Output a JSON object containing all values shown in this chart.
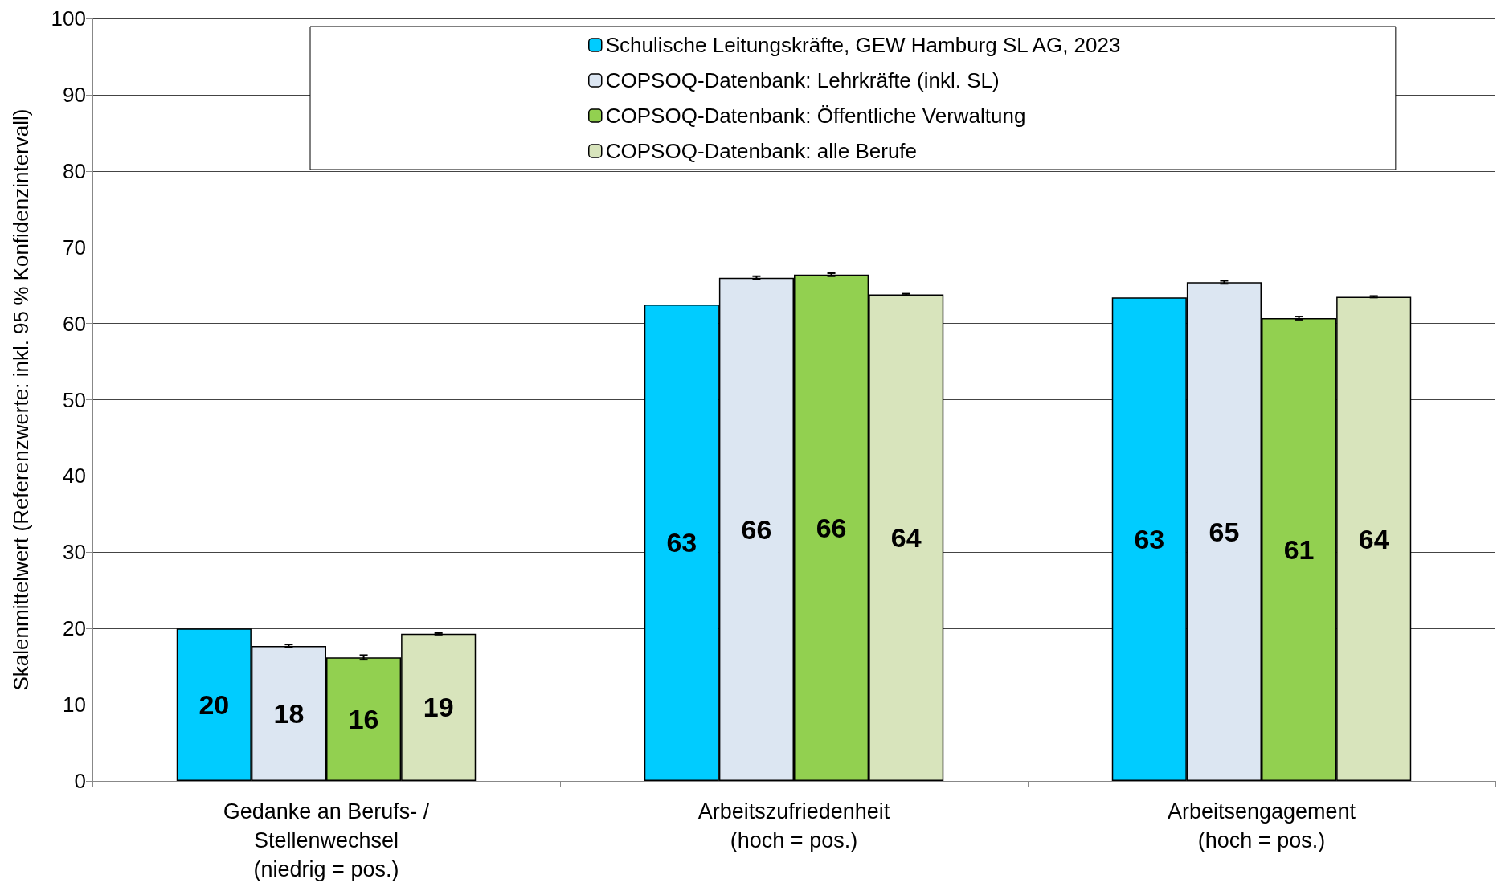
{
  "chart_data": {
    "type": "bar",
    "ylabel": "Skalenmittelwert (Referenzwerte: inkl. 95 % Konfidenzintervall)",
    "categories": [
      "Gedanke an Berufs- /\nStellenwechsel\n(niedrig = pos.)",
      "Arbeitszufriedenheit\n(hoch = pos.)",
      "Arbeitsengagement\n(hoch = pos.)"
    ],
    "series": [
      {
        "name": "Schulische Leitungskräfte, GEW Hamburg SL AG, 2023",
        "color": "#00ccff",
        "values": [
          20.0,
          62.5,
          63.4
        ],
        "value_labels": [
          "20",
          "63",
          "63"
        ]
      },
      {
        "name": "COPSOQ-Datenbank: Lehrkräfte (inkl. SL)",
        "color": "#dce6f2",
        "values": [
          17.7,
          66.0,
          65.4
        ],
        "value_labels": [
          "18",
          "66",
          "65"
        ],
        "errors": [
          0.2,
          0.2,
          0.2
        ]
      },
      {
        "name": "COPSOQ-Datenbank: Öffentliche Verwaltung",
        "color": "#92d050",
        "values": [
          16.2,
          66.4,
          60.7
        ],
        "value_labels": [
          "16",
          "66",
          "61"
        ],
        "errors": [
          0.3,
          0.2,
          0.2
        ]
      },
      {
        "name": "COPSOQ-Datenbank: alle Berufe",
        "color": "#d8e4bc",
        "values": [
          19.3,
          63.8,
          63.5
        ],
        "value_labels": [
          "19",
          "64",
          "64"
        ],
        "errors": [
          0.1,
          0.1,
          0.1
        ]
      }
    ],
    "ylim": [
      0,
      100
    ],
    "yticks": [
      0,
      10,
      20,
      30,
      40,
      50,
      60,
      70,
      80,
      90,
      100
    ],
    "grid": "y",
    "legend": "top right"
  }
}
